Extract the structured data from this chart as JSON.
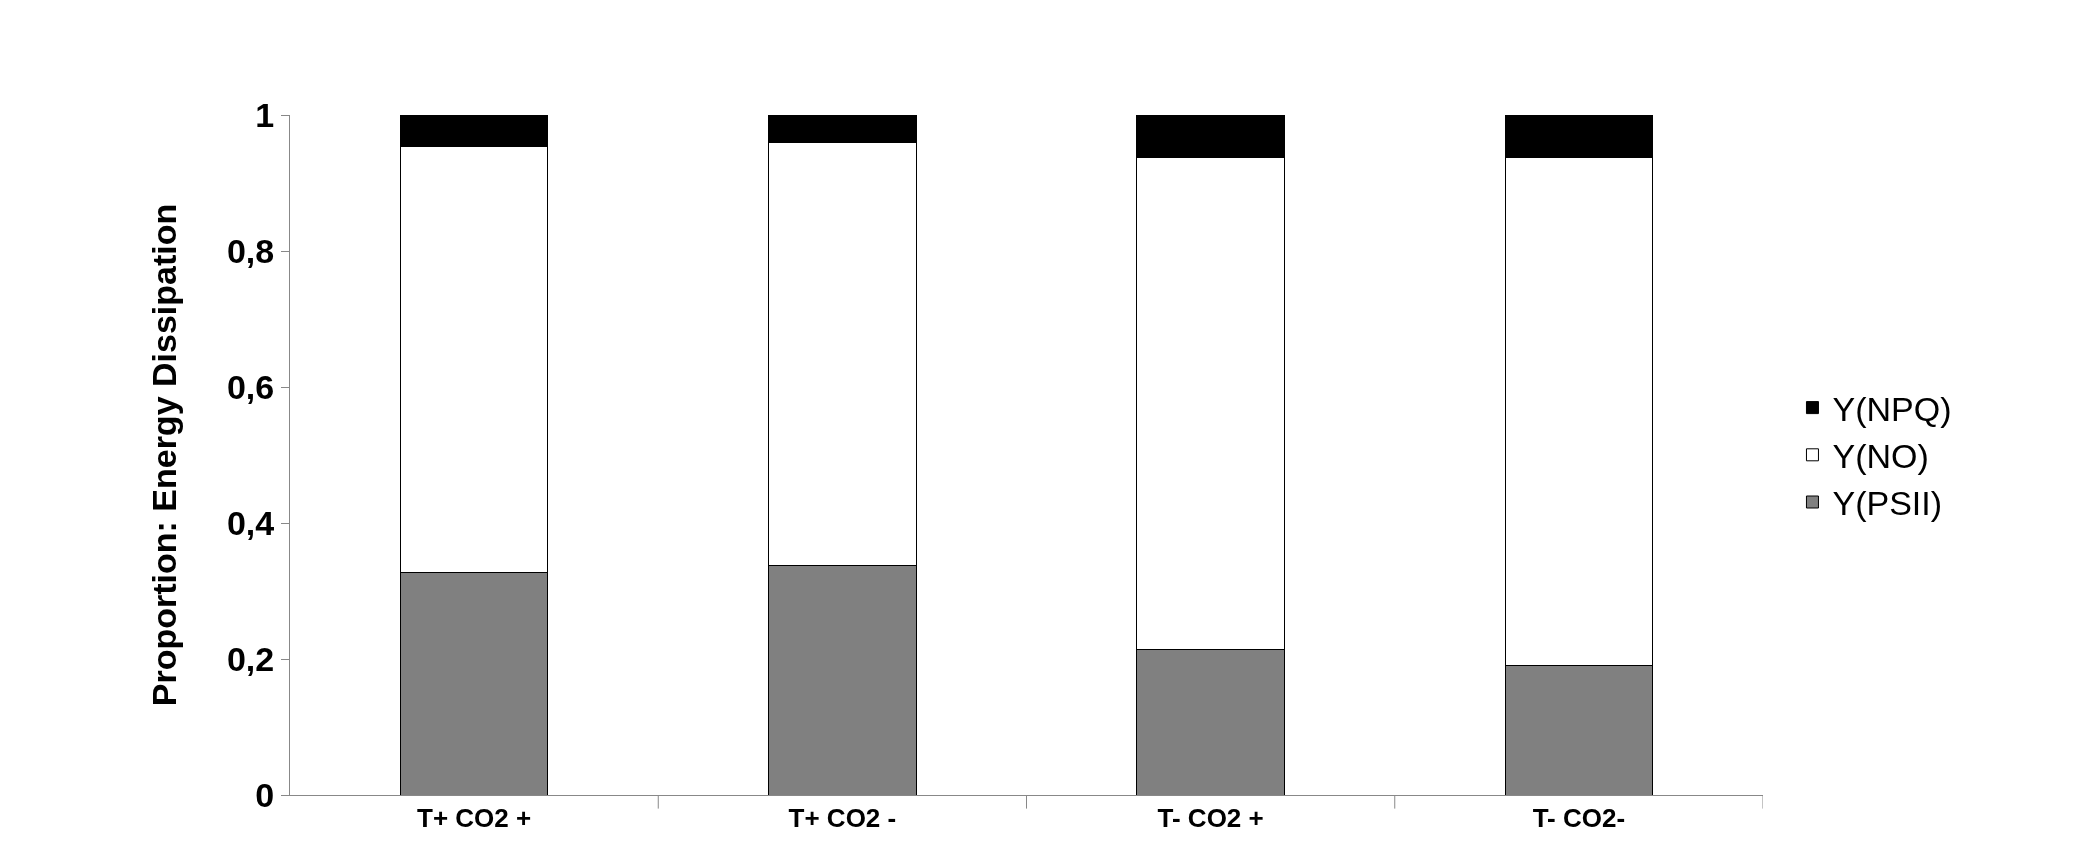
{
  "chart_data": {
    "type": "bar",
    "stacked": true,
    "ylabel": "Proportion: Energy Dissipation",
    "categories": [
      "T+ CO2 +",
      "T+ CO2 -",
      "T- CO2 +",
      "T- CO2-"
    ],
    "series": [
      {
        "name": "Y(PSII)",
        "color": "#808080",
        "values": [
          0.327,
          0.337,
          0.214,
          0.19
        ]
      },
      {
        "name": "Y(NO)",
        "color": "#ffffff",
        "values": [
          0.627,
          0.623,
          0.724,
          0.748
        ]
      },
      {
        "name": "Y(NPQ)",
        "color": "#000000",
        "values": [
          0.046,
          0.04,
          0.062,
          0.062
        ]
      }
    ],
    "ylim": [
      0,
      1
    ],
    "yticks": [
      0,
      {
        "value": 0.2,
        "label": "0,2"
      },
      {
        "value": 0.4,
        "label": "0,4"
      },
      {
        "value": 0.6,
        "label": "0,6"
      },
      {
        "value": 0.8,
        "label": "0,8"
      },
      1
    ],
    "grid": false,
    "legend": "right"
  }
}
